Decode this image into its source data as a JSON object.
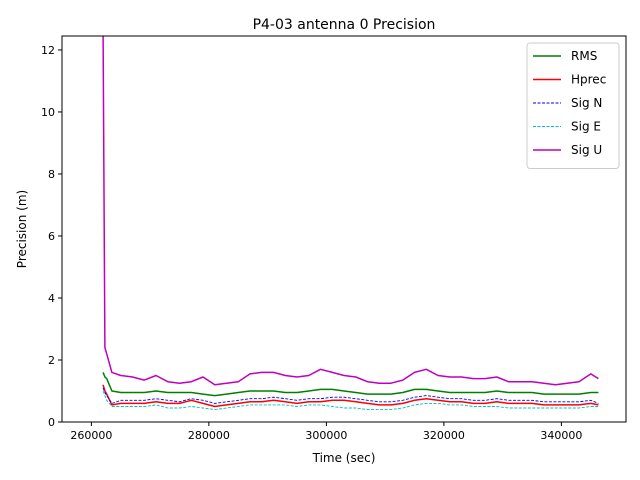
{
  "chart_data": {
    "type": "line",
    "title": "P4-03 antenna 0 Precision",
    "xlabel": "Time (sec)",
    "ylabel": "Precision (m)",
    "xlim": [
      255000,
      351000
    ],
    "ylim": [
      0,
      12.45
    ],
    "xticks": [
      260000,
      280000,
      300000,
      320000,
      340000
    ],
    "yticks": [
      0,
      2,
      4,
      6,
      8,
      10,
      12
    ],
    "grid": false,
    "legend_position": "top-right",
    "x": [
      262000,
      262300,
      262600,
      263500,
      265000,
      267000,
      269000,
      271000,
      273000,
      275000,
      277000,
      279000,
      281000,
      283000,
      285000,
      287000,
      289000,
      291000,
      293000,
      295000,
      297000,
      299000,
      301000,
      303000,
      305000,
      307000,
      309000,
      311000,
      313000,
      315000,
      317000,
      319000,
      321000,
      323000,
      325000,
      327000,
      329000,
      331000,
      333000,
      335000,
      337000,
      339000,
      341000,
      343000,
      345000,
      346300
    ],
    "series": [
      {
        "name": "RMS",
        "color": "#008000",
        "style": "solid",
        "values": [
          1.6,
          1.45,
          1.4,
          1.0,
          0.95,
          0.95,
          0.95,
          1.0,
          0.95,
          0.95,
          0.95,
          0.9,
          0.85,
          0.9,
          0.95,
          1.0,
          1.0,
          1.0,
          0.95,
          0.95,
          1.0,
          1.05,
          1.05,
          1.0,
          0.95,
          0.9,
          0.9,
          0.9,
          0.95,
          1.05,
          1.05,
          1.0,
          0.95,
          0.95,
          0.95,
          0.95,
          1.0,
          0.95,
          0.95,
          0.95,
          0.9,
          0.9,
          0.9,
          0.9,
          0.95,
          0.95
        ]
      },
      {
        "name": "Hprec",
        "color": "#ff0000",
        "style": "solid",
        "values": [
          1.2,
          1.0,
          0.9,
          0.55,
          0.6,
          0.6,
          0.6,
          0.65,
          0.6,
          0.6,
          0.7,
          0.6,
          0.5,
          0.55,
          0.6,
          0.65,
          0.65,
          0.7,
          0.65,
          0.6,
          0.65,
          0.65,
          0.7,
          0.7,
          0.65,
          0.6,
          0.55,
          0.55,
          0.6,
          0.7,
          0.75,
          0.7,
          0.65,
          0.65,
          0.6,
          0.6,
          0.65,
          0.6,
          0.6,
          0.6,
          0.55,
          0.55,
          0.55,
          0.55,
          0.6,
          0.55
        ]
      },
      {
        "name": "Sig N",
        "color": "#0000ff",
        "style": "dashed",
        "values": [
          1.1,
          0.95,
          0.85,
          0.6,
          0.7,
          0.7,
          0.7,
          0.75,
          0.7,
          0.65,
          0.75,
          0.7,
          0.6,
          0.65,
          0.7,
          0.75,
          0.75,
          0.8,
          0.75,
          0.7,
          0.75,
          0.75,
          0.8,
          0.8,
          0.75,
          0.7,
          0.65,
          0.65,
          0.7,
          0.8,
          0.85,
          0.8,
          0.75,
          0.75,
          0.7,
          0.7,
          0.75,
          0.7,
          0.7,
          0.7,
          0.65,
          0.65,
          0.65,
          0.65,
          0.7,
          0.6
        ]
      },
      {
        "name": "Sig E",
        "color": "#00bfbf",
        "style": "dashed",
        "values": [
          1.0,
          0.85,
          0.7,
          0.5,
          0.5,
          0.5,
          0.5,
          0.55,
          0.45,
          0.45,
          0.5,
          0.45,
          0.4,
          0.45,
          0.5,
          0.55,
          0.55,
          0.55,
          0.55,
          0.5,
          0.55,
          0.55,
          0.5,
          0.45,
          0.45,
          0.4,
          0.4,
          0.4,
          0.45,
          0.55,
          0.6,
          0.6,
          0.55,
          0.55,
          0.5,
          0.5,
          0.5,
          0.45,
          0.45,
          0.45,
          0.45,
          0.45,
          0.45,
          0.45,
          0.5,
          0.5
        ]
      },
      {
        "name": "Sig U",
        "color": "#bf00bf",
        "style": "solid",
        "values": [
          12.45,
          2.4,
          2.2,
          1.6,
          1.5,
          1.45,
          1.35,
          1.5,
          1.3,
          1.25,
          1.3,
          1.45,
          1.2,
          1.25,
          1.3,
          1.55,
          1.6,
          1.6,
          1.5,
          1.45,
          1.5,
          1.7,
          1.6,
          1.5,
          1.45,
          1.3,
          1.25,
          1.25,
          1.35,
          1.6,
          1.7,
          1.5,
          1.45,
          1.45,
          1.4,
          1.4,
          1.45,
          1.3,
          1.3,
          1.3,
          1.25,
          1.2,
          1.25,
          1.3,
          1.55,
          1.4
        ]
      }
    ]
  }
}
